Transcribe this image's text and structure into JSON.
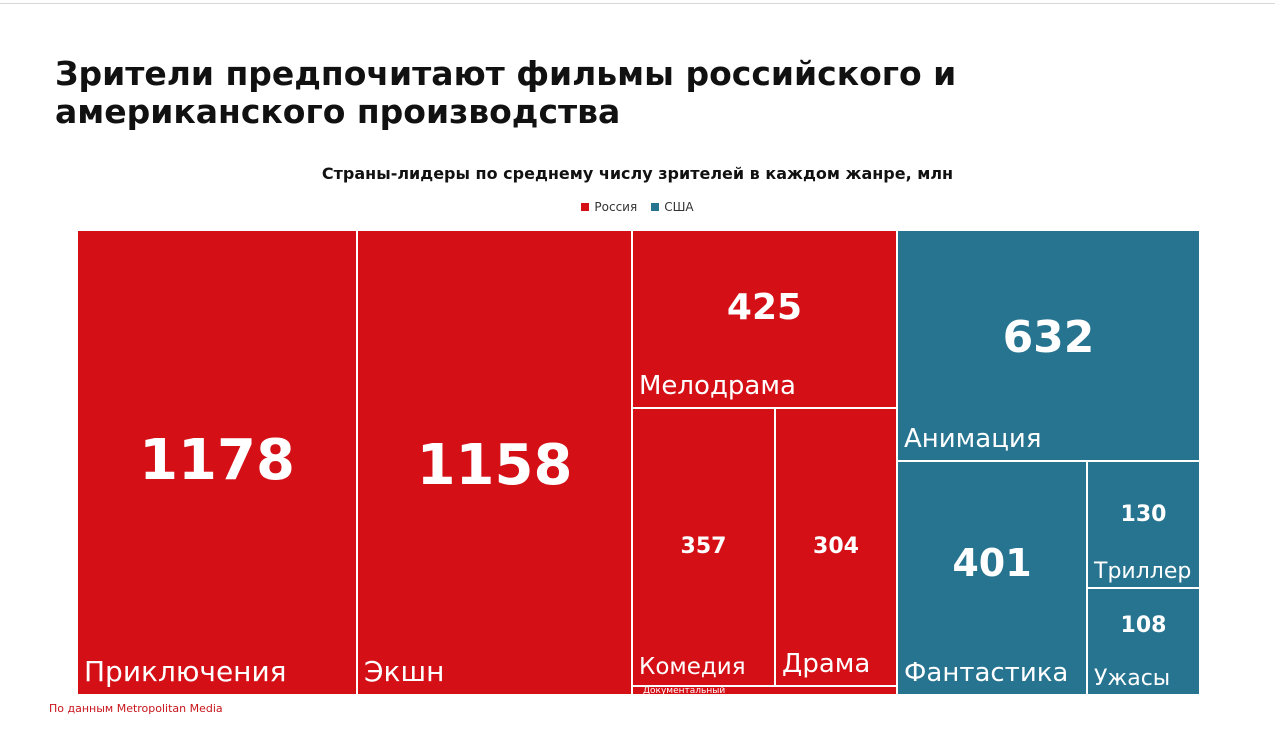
{
  "headline": "Зрители предпочитают фильмы российского и американского производства",
  "source": "По данным Metropolitan Media",
  "colors": {
    "russia": "#d40f16",
    "usa": "#267490"
  },
  "chart_data": {
    "type": "treemap",
    "title": "Страны-лидеры по среднему числу зрителей в каждом жанре, млн",
    "legend_position": "top-center",
    "legend": [
      {
        "key": "russia",
        "label": "Россия"
      },
      {
        "key": "usa",
        "label": "США"
      }
    ],
    "tiles": [
      {
        "genre": "Приключения",
        "value": 1178,
        "country": "russia"
      },
      {
        "genre": "Экшн",
        "value": 1158,
        "country": "russia"
      },
      {
        "genre": "Мелодрама",
        "value": 425,
        "country": "russia"
      },
      {
        "genre": "Комедия",
        "value": 357,
        "country": "russia"
      },
      {
        "genre": "Драма",
        "value": 304,
        "country": "russia"
      },
      {
        "genre": "Документальный",
        "value": null,
        "country": "russia"
      },
      {
        "genre": "Анимация",
        "value": 632,
        "country": "usa"
      },
      {
        "genre": "Фантастика",
        "value": 401,
        "country": "usa"
      },
      {
        "genre": "Триллер",
        "value": 130,
        "country": "usa"
      },
      {
        "genre": "Ужасы",
        "value": 108,
        "country": "usa"
      }
    ]
  }
}
